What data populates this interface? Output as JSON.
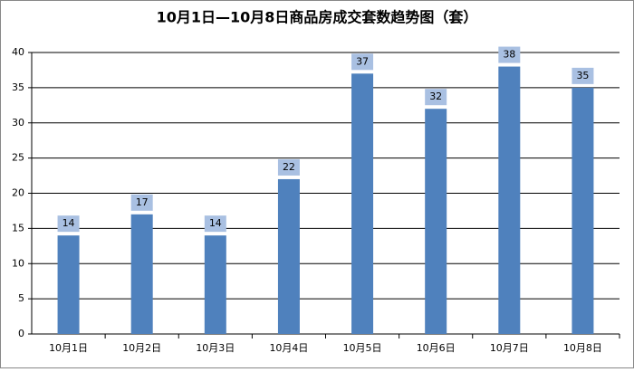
{
  "chart_data": {
    "type": "bar",
    "title": "10月1日—10月8日商品房成交套数趋势图（套）",
    "categories": [
      "10月1日",
      "10月2日",
      "10月3日",
      "10月4日",
      "10月5日",
      "10月6日",
      "10月7日",
      "10月8日"
    ],
    "values": [
      14,
      17,
      14,
      22,
      37,
      32,
      38,
      35
    ],
    "color": "#4f81bd",
    "ylim": [
      0,
      40
    ],
    "yticks": [
      0,
      5,
      10,
      15,
      20,
      25,
      30,
      35,
      40
    ],
    "grid": true
  }
}
